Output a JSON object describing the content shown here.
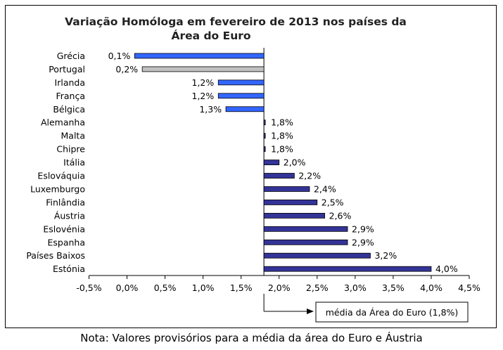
{
  "chart_data": {
    "type": "bar",
    "orientation": "horizontal",
    "title_lines": [
      "Variação Homóloga em fevereiro de 2013 nos países da",
      "Área do Euro"
    ],
    "categories": [
      "Grécia",
      "Portugal",
      "Irlanda",
      "França",
      "Bélgica",
      "Alemanha",
      "Malta",
      "Chipre",
      "Itália",
      "Eslováquia",
      "Luxemburgo",
      "Finlândia",
      "Áustria",
      "Eslovénia",
      "Espanha",
      "Países Baixos",
      "Estónia"
    ],
    "values": [
      0.1,
      0.2,
      1.2,
      1.2,
      1.3,
      1.8,
      1.8,
      1.8,
      2.0,
      2.2,
      2.4,
      2.5,
      2.6,
      2.9,
      2.9,
      3.2,
      4.0
    ],
    "labels": [
      "0,1%",
      "0,2%",
      "1,2%",
      "1,2%",
      "1,3%",
      "1,8%",
      "1,8%",
      "1,8%",
      "2,0%",
      "2,2%",
      "2,4%",
      "2,5%",
      "2,6%",
      "2,9%",
      "2,9%",
      "3,2%",
      "4,0%"
    ],
    "highlight": "Portugal",
    "xlim": [
      -0.5,
      4.5
    ],
    "xticks": [
      -0.5,
      0.0,
      0.5,
      1.0,
      1.5,
      2.0,
      2.5,
      3.0,
      3.5,
      4.0,
      4.5
    ],
    "xtick_labels": [
      "-0,5%",
      "0,0%",
      "0,5%",
      "1,0%",
      "1,5%",
      "2,0%",
      "2,5%",
      "3,0%",
      "3,5%",
      "4,0%",
      "4,5%"
    ],
    "reference_value": 1.8,
    "reference_label": "média da Área do Euro (1,8%)",
    "colors": {
      "below_fill": "#3366ff",
      "above_fill": "#333399",
      "highlight_fill": "#c0c0c0",
      "outline": "#000000"
    }
  },
  "note": "Nota: Valores provisórios para a média da área do Euro e Áustria"
}
